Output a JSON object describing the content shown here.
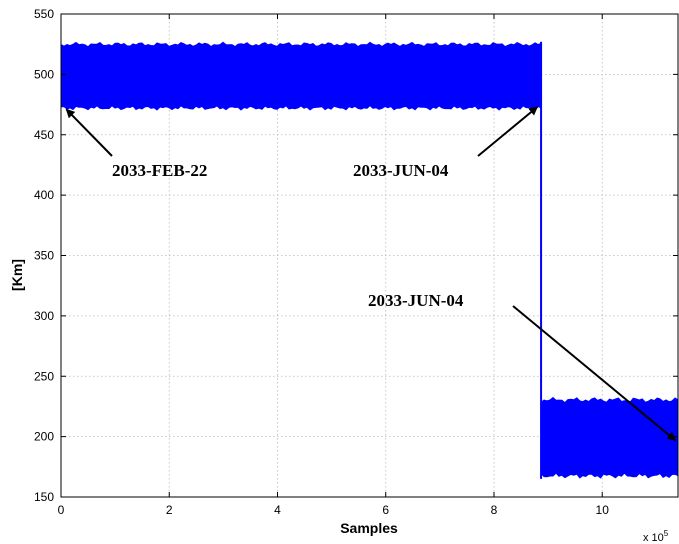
{
  "chart_data": {
    "type": "line",
    "title": "",
    "xlabel": "Samples",
    "ylabel": "[Km]",
    "x_multiplier_label": "x 10",
    "x_multiplier_exponent": "5",
    "xlim": [
      0,
      11.4
    ],
    "ylim": [
      150,
      550
    ],
    "grid": true,
    "x_ticks": [
      "0",
      "2",
      "4",
      "6",
      "8",
      "10"
    ],
    "y_ticks": [
      "150",
      "200",
      "250",
      "300",
      "350",
      "400",
      "450",
      "500",
      "550"
    ],
    "series": [
      {
        "color": "#0000ff",
        "segments": [
          {
            "x_start": 0,
            "x_end": 8.87,
            "min": 470,
            "max": 527
          },
          {
            "x_start": 8.87,
            "x_end": 11.4,
            "min": 165,
            "max": 233
          }
        ]
      }
    ],
    "annotations": [
      {
        "text": "2033-FEB-22",
        "arrow_to": [
          0.1,
          471
        ]
      },
      {
        "text": "2033-JUN-04",
        "arrow_to": [
          8.8,
          473
        ]
      },
      {
        "text": "2033-JUN-04",
        "arrow_to": [
          11.35,
          197
        ]
      }
    ]
  }
}
